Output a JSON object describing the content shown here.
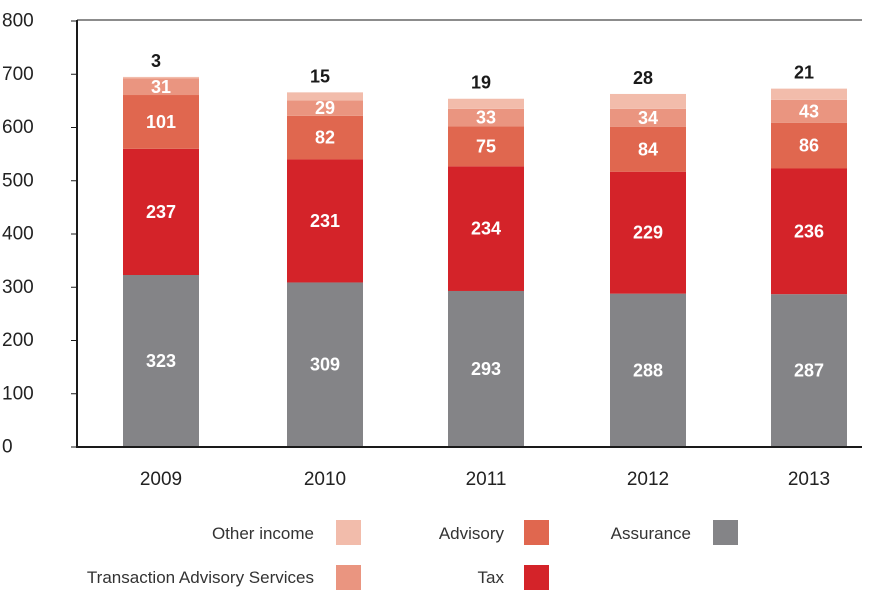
{
  "chart_data": {
    "type": "bar",
    "stacked": true,
    "categories": [
      "2009",
      "2010",
      "2011",
      "2012",
      "2013"
    ],
    "ylim": [
      0,
      800
    ],
    "yticks": [
      0,
      100,
      200,
      300,
      400,
      500,
      600,
      700,
      800
    ],
    "grid": false,
    "legend_position": "bottom",
    "series": [
      {
        "name": "Assurance",
        "color": "#848487",
        "values": [
          323,
          309,
          293,
          288,
          287
        ]
      },
      {
        "name": "Tax",
        "color": "#d42329",
        "values": [
          237,
          231,
          234,
          229,
          236
        ]
      },
      {
        "name": "Advisory",
        "color": "#e0674f",
        "values": [
          101,
          82,
          75,
          84,
          86
        ]
      },
      {
        "name": "Transaction Advisory Services",
        "color": "#ea9580",
        "values": [
          31,
          29,
          33,
          34,
          43
        ]
      },
      {
        "name": "Other income",
        "color": "#f2bcab",
        "values": [
          3,
          15,
          19,
          28,
          21
        ]
      }
    ]
  },
  "legend": {
    "other_income": "Other income",
    "advisory": "Advisory",
    "assurance": "Assurance",
    "transaction_advisory_services": "Transaction Advisory Services",
    "tax": "Tax"
  }
}
